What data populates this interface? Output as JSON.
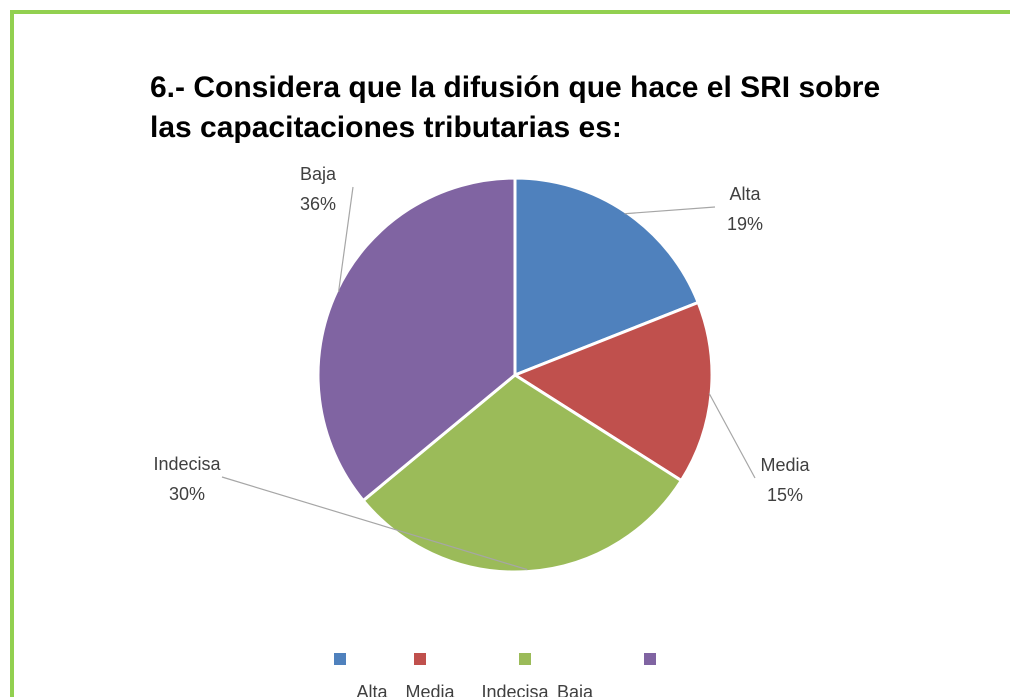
{
  "chart_data": {
    "type": "pie",
    "title": "6.- Considera que la difusión que hace el SRI sobre las capacitaciones tributarias es:",
    "categories": [
      "Alta",
      "Media",
      "Indecisa",
      "Baja"
    ],
    "values": [
      19,
      15,
      30,
      36
    ],
    "value_labels": [
      "19%",
      "15%",
      "30%",
      "36%"
    ],
    "colors": [
      "#4f81bd",
      "#c0504d",
      "#9bbb59",
      "#8064a2"
    ],
    "legend": "bottom"
  }
}
